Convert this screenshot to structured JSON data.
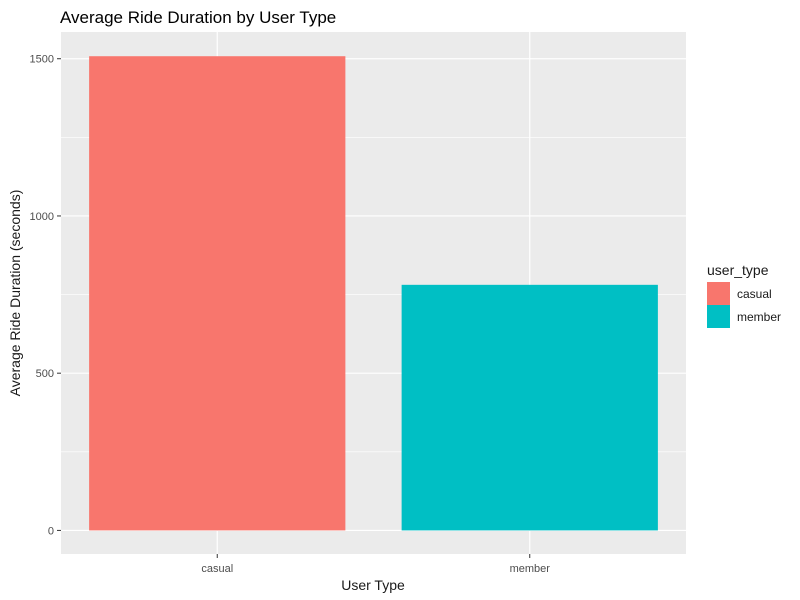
{
  "chart_data": {
    "type": "bar",
    "title": "Average Ride Duration by User Type",
    "xlabel": "User Type",
    "ylabel": "Average Ride Duration (seconds)",
    "categories": [
      "casual",
      "member"
    ],
    "values": [
      1508,
      781
    ],
    "ylim": [
      -75,
      1585
    ],
    "yticks": [
      0,
      500,
      1000,
      1500
    ],
    "y_minor_ticks": [
      250,
      750,
      1250
    ],
    "grid": true,
    "legend": {
      "title": "user_type",
      "placement": "right",
      "entries": [
        {
          "label": "casual",
          "color": "#F8766D"
        },
        {
          "label": "member",
          "color": "#00BFC4"
        }
      ]
    },
    "colors": {
      "panel_background": "#EBEBEB",
      "grid": "#FFFFFF"
    }
  }
}
